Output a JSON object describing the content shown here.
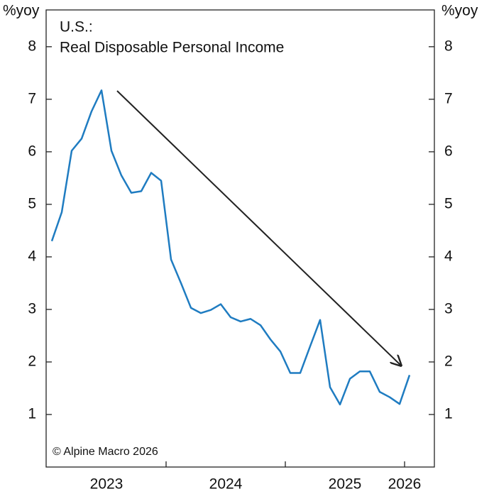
{
  "chart_data": {
    "type": "line",
    "title": "U.S.:",
    "subtitle": "Real Disposable Personal Income",
    "y_label": "%yoy",
    "y2_label": "%yoy",
    "source": "© Alpine Macro 2026",
    "categories": [
      null,
      null,
      null,
      null,
      null,
      null,
      "2023",
      null,
      null,
      null,
      null,
      null,
      null,
      null,
      null,
      null,
      null,
      null,
      "2024",
      null,
      null,
      null,
      null,
      null,
      null,
      null,
      null,
      null,
      null,
      null,
      "2025",
      null,
      null,
      null,
      null,
      null,
      "2026"
    ],
    "series": [
      {
        "name": "Real Disposable Personal Income",
        "color": "#1f7cc1",
        "values": [
          4.3,
          4.85,
          6.02,
          6.25,
          6.77,
          7.17,
          6.02,
          5.55,
          5.22,
          5.25,
          5.6,
          5.45,
          3.95,
          3.5,
          3.03,
          2.93,
          2.99,
          3.1,
          2.85,
          2.77,
          2.82,
          2.7,
          2.43,
          2.2,
          1.79,
          1.79,
          2.3,
          2.8,
          1.52,
          1.19,
          1.68,
          1.82,
          1.82,
          1.43,
          1.33,
          1.2,
          1.75
        ]
      }
    ],
    "ylim": [
      0,
      8.7
    ],
    "yticks": [
      1,
      2,
      3,
      4,
      5,
      6,
      7,
      8
    ]
  }
}
